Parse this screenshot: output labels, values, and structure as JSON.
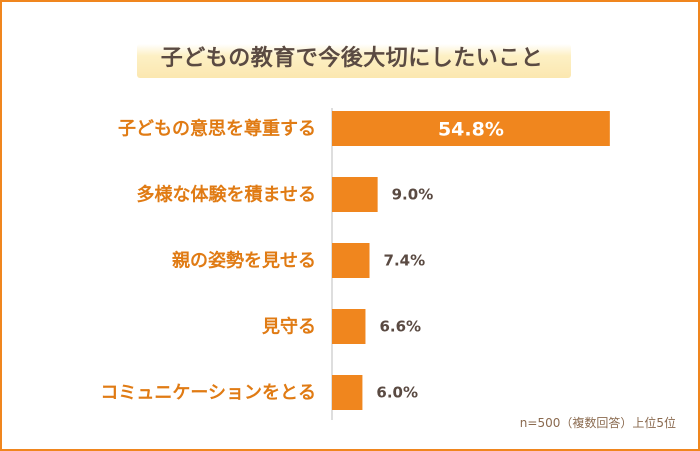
{
  "colors": {
    "bar": "#f0861e",
    "category_text": "#e07b14",
    "value_text": "#5a4a42",
    "frame": "#f0861e"
  },
  "chart_data": {
    "type": "bar",
    "orientation": "horizontal",
    "title": "子どもの教育で今後大切にしたいこと",
    "categories": [
      "子どもの意思を尊重する",
      "多様な体験を積ませる",
      "親の姿勢を見せる",
      "見守る",
      "コミュニケーションをとる"
    ],
    "values": [
      54.8,
      9.0,
      7.4,
      6.6,
      6.0
    ],
    "value_labels": [
      "54.8%",
      "9.0%",
      "7.4%",
      "6.6%",
      "6.0%"
    ],
    "xlim": [
      0,
      60
    ],
    "grid": false,
    "note": "n=500（複数回答）上位5位"
  }
}
